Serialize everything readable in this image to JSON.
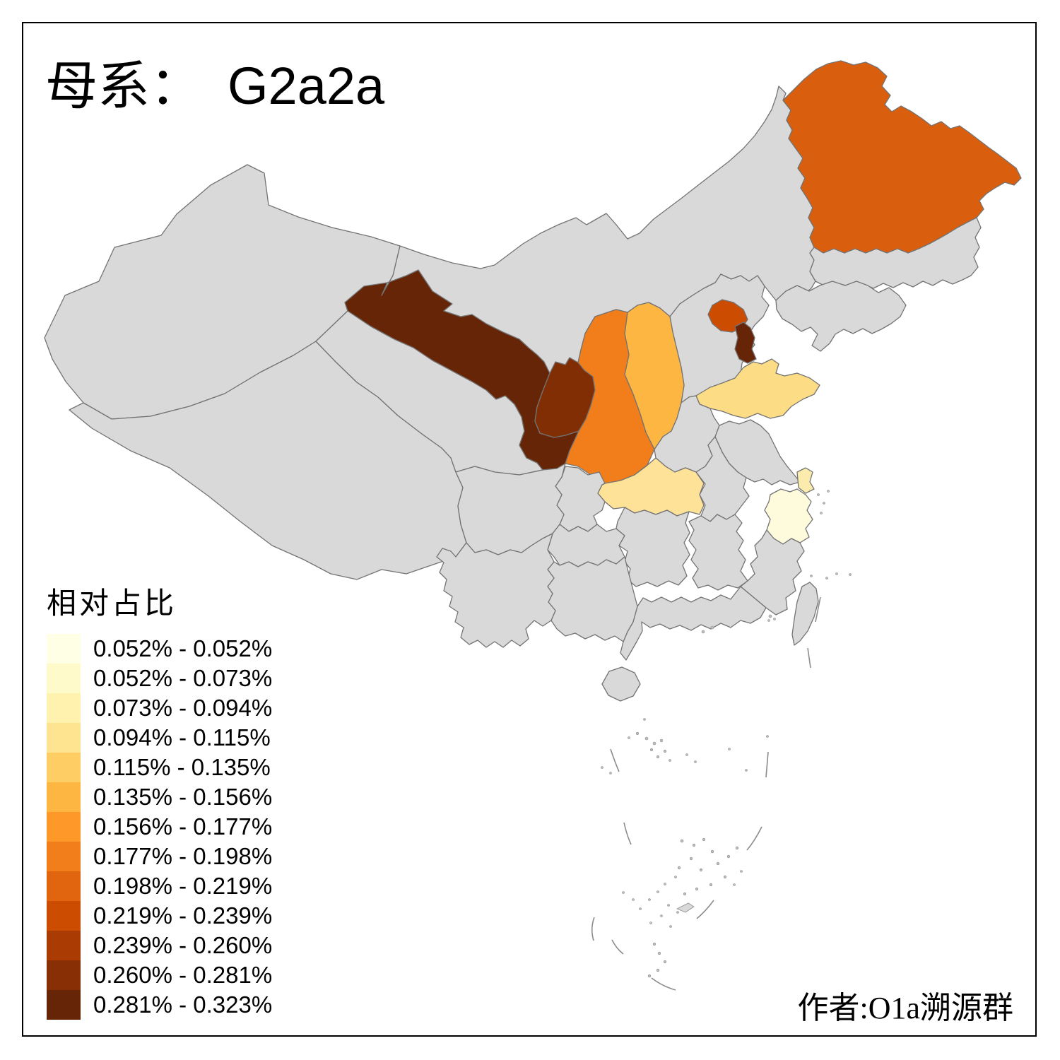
{
  "title": {
    "prefix": "母系：",
    "haplogroup": "G2a2a"
  },
  "attribution": "作者:O1a溯源群",
  "legend": {
    "title": "相对占比",
    "items": [
      {
        "color": "#FFFFE5",
        "label": "0.052% - 0.052%"
      },
      {
        "color": "#FFFACA",
        "label": "0.052% - 0.073%"
      },
      {
        "color": "#FFF1AE",
        "label": "0.073% - 0.094%"
      },
      {
        "color": "#FEE391",
        "label": "0.094% - 0.115%"
      },
      {
        "color": "#FECE65",
        "label": "0.115% - 0.135%"
      },
      {
        "color": "#FEB642",
        "label": "0.135% - 0.156%"
      },
      {
        "color": "#FE9929",
        "label": "0.156% - 0.177%"
      },
      {
        "color": "#F27E1B",
        "label": "0.177% - 0.198%"
      },
      {
        "color": "#E1640E",
        "label": "0.198% - 0.219%"
      },
      {
        "color": "#CC4C02",
        "label": "0.219% - 0.239%"
      },
      {
        "color": "#AA3C03",
        "label": "0.239% - 0.260%"
      },
      {
        "color": "#882F05",
        "label": "0.260% - 0.281%"
      },
      {
        "color": "#662506",
        "label": "0.281% - 0.323%"
      }
    ]
  },
  "map": {
    "background": "#FFFFFF",
    "no_data_fill": "#D9D9D9",
    "border_color": "#737373",
    "island_detail_color": "#8C8C8C",
    "frame_color": "#000000",
    "provinces": [
      {
        "id": "xinjiang",
        "color": "#D9D9D9",
        "legend_class": "none"
      },
      {
        "id": "tibet",
        "color": "#D9D9D9",
        "legend_class": "none"
      },
      {
        "id": "qinghai",
        "color": "#D9D9D9",
        "legend_class": "none"
      },
      {
        "id": "gansu",
        "color": "#662506",
        "legend_class": "0.281% - 0.323%"
      },
      {
        "id": "ningxia",
        "color": "#822E05",
        "legend_class": "0.260% - 0.281%"
      },
      {
        "id": "inner_mongolia",
        "color": "#D9D9D9",
        "legend_class": "none"
      },
      {
        "id": "heilongjiang",
        "color": "#D95F0E",
        "legend_class": "0.198% - 0.219%"
      },
      {
        "id": "jilin",
        "color": "#D9D9D9",
        "legend_class": "none"
      },
      {
        "id": "liaoning",
        "color": "#D9D9D9",
        "legend_class": "none"
      },
      {
        "id": "hebei",
        "color": "#D9D9D9",
        "legend_class": "none"
      },
      {
        "id": "beijing",
        "color": "#CC4C02",
        "legend_class": "0.219% - 0.239%"
      },
      {
        "id": "tianjin",
        "color": "#662506",
        "legend_class": "0.281% - 0.323%"
      },
      {
        "id": "shanxi",
        "color": "#FEB642",
        "legend_class": "0.135% - 0.156%"
      },
      {
        "id": "shaanxi",
        "color": "#F27E1B",
        "legend_class": "0.177% - 0.198%"
      },
      {
        "id": "shandong",
        "color": "#FDDC86",
        "legend_class": "0.094% - 0.115%"
      },
      {
        "id": "henan",
        "color": "#D9D9D9",
        "legend_class": "none"
      },
      {
        "id": "jiangsu",
        "color": "#D9D9D9",
        "legend_class": "none"
      },
      {
        "id": "anhui",
        "color": "#D9D9D9",
        "legend_class": "none"
      },
      {
        "id": "shanghai",
        "color": "#FBEBAD",
        "legend_class": "0.073% - 0.094%"
      },
      {
        "id": "zhejiang",
        "color": "#FEFBDC",
        "legend_class": "0.052% - 0.073%"
      },
      {
        "id": "hubei",
        "color": "#FEE298",
        "legend_class": "0.094% - 0.115%"
      },
      {
        "id": "chongqing",
        "color": "#D9D9D9",
        "legend_class": "none"
      },
      {
        "id": "sichuan",
        "color": "#D9D9D9",
        "legend_class": "none"
      },
      {
        "id": "guizhou",
        "color": "#D9D9D9",
        "legend_class": "none"
      },
      {
        "id": "hunan",
        "color": "#D9D9D9",
        "legend_class": "none"
      },
      {
        "id": "jiangxi",
        "color": "#D9D9D9",
        "legend_class": "none"
      },
      {
        "id": "fujian",
        "color": "#D9D9D9",
        "legend_class": "none"
      },
      {
        "id": "guangdong",
        "color": "#D9D9D9",
        "legend_class": "none"
      },
      {
        "id": "guangxi",
        "color": "#D9D9D9",
        "legend_class": "none"
      },
      {
        "id": "yunnan",
        "color": "#D9D9D9",
        "legend_class": "none"
      },
      {
        "id": "hainan",
        "color": "#D9D9D9",
        "legend_class": "none"
      },
      {
        "id": "taiwan",
        "color": "#D9D9D9",
        "legend_class": "none"
      }
    ]
  }
}
